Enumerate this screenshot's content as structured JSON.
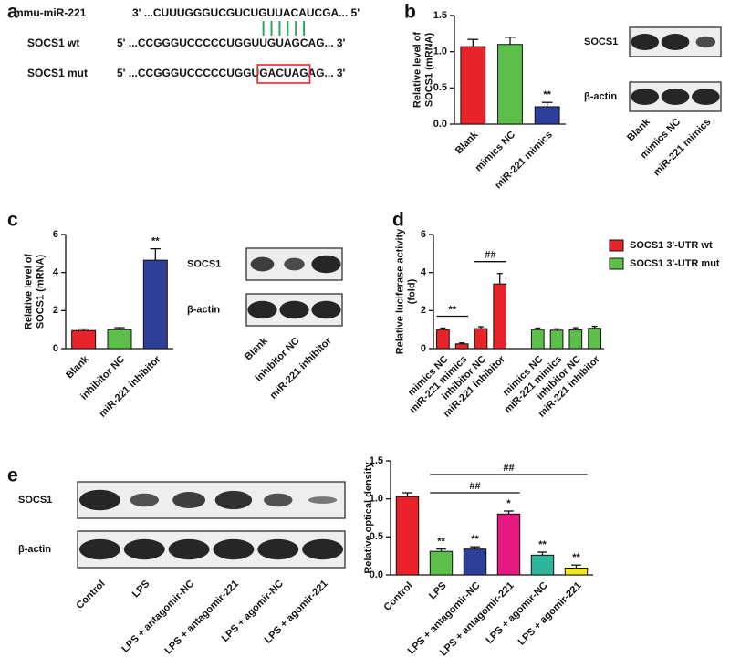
{
  "panel_a": {
    "label": "a",
    "mirna_name": "mmu-miR-221",
    "mirna_seq": "3' ...CUUUGGGUCGUCUGUUACAUCGA... 5'",
    "wt_name": "SOCS1 wt",
    "wt_seq": "5' ...CCGGGUCCCCCUGGUUGUAGCAG... 3'",
    "mut_name": "SOCS1 mut",
    "mut_seq": [
      "5' ...CCGGGUCCCCCUGGU",
      "GACUAG",
      "AG... 3'"
    ]
  },
  "blots": [
    {
      "labels": [
        "SOCS1",
        "β-actin"
      ]
    },
    {
      "labels": [
        "SOCS1",
        "β-actin"
      ]
    },
    {
      "labels": [
        "SOCS1",
        "β-actin"
      ]
    }
  ],
  "chart_data": [
    {
      "type": "bar",
      "panel_label": "b",
      "ylabel": [
        "Relative level of",
        "SOCS1 (mRNA)"
      ],
      "categories": [
        "Blank",
        "mimics NC",
        "miR-221 mimics"
      ],
      "values": [
        1.07,
        1.1,
        0.24
      ],
      "errors": [
        0.1,
        0.1,
        0.06
      ],
      "colors": [
        "#e8232a",
        "#5cbf4a",
        "#2e3f99"
      ],
      "bar_labels": [
        null,
        null,
        "**"
      ],
      "ylim": [
        0,
        1.5
      ],
      "yticks": [
        {
          "value": 0,
          "label": "0.0"
        },
        0.5,
        {
          "value": 1,
          "label": "1.0"
        },
        1.5
      ]
    },
    {
      "type": "bar",
      "panel_label": "c",
      "ylabel": [
        "Relative level of",
        "SOCS1 (mRNA)"
      ],
      "categories": [
        "Blank",
        "inhibitor NC",
        "miR-221 inhibitor"
      ],
      "values": [
        0.95,
        1.0,
        4.65
      ],
      "errors": [
        0.08,
        0.1,
        0.6
      ],
      "colors": [
        "#e8232a",
        "#5cbf4a",
        "#2e3f99"
      ],
      "bar_labels": [
        null,
        null,
        "**"
      ],
      "ylim": [
        0,
        6
      ],
      "yticks": [
        0,
        2,
        4,
        6
      ]
    },
    {
      "type": "bar",
      "panel_label": "d",
      "ylabel": [
        "Relative luciferase activity",
        "(fold)"
      ],
      "categories": [
        "mimics NC",
        "miR-221 mimics",
        "inhibitor NC",
        "miR-221 inhibitor",
        "mimics NC",
        "miR-221 mimics",
        "inhibitor NC",
        "miR-221 inhibitor"
      ],
      "series": [
        {
          "name": "SOCS1 3'-UTR wt",
          "color": "#e8232a",
          "values": [
            1.0,
            0.25,
            1.05,
            3.4,
            null,
            null,
            null,
            null
          ],
          "errors": [
            0.08,
            0.05,
            0.1,
            0.55,
            null,
            null,
            null,
            null
          ]
        },
        {
          "name": "SOCS1 3'-UTR mut",
          "color": "#5cbf4a",
          "values": [
            null,
            null,
            null,
            null,
            1.0,
            0.97,
            0.98,
            1.07
          ],
          "errors": [
            null,
            null,
            null,
            null,
            0.08,
            0.07,
            0.12,
            0.1
          ]
        }
      ],
      "brackets": [
        {
          "text": "**",
          "from": 0,
          "to": 1
        },
        {
          "text": "##",
          "from": 2,
          "to": 3
        }
      ],
      "legend": "right",
      "ylim": [
        0,
        6
      ],
      "yticks": [
        0,
        2,
        4,
        6
      ]
    },
    {
      "type": "bar",
      "panel_label": "e",
      "ylabel": [
        "Relative optical density"
      ],
      "categories": [
        "Control",
        "LPS",
        "LPS + antagomir-NC",
        "LPS + antagomir-221",
        "LPS + agomir-NC",
        "LPS + agomir-221"
      ],
      "values": [
        1.03,
        0.31,
        0.34,
        0.8,
        0.26,
        0.09
      ],
      "errors": [
        0.05,
        0.03,
        0.03,
        0.04,
        0.04,
        0.04
      ],
      "colors": [
        "#e8232a",
        "#5cbf4a",
        "#2e3f99",
        "#e5197f",
        "#2fb59a",
        "#f2e51c"
      ],
      "bar_labels": [
        null,
        "**",
        "**",
        "*",
        "**",
        "**"
      ],
      "brackets": [
        {
          "text": "##",
          "from": 1,
          "to": 3
        },
        {
          "text": "##",
          "from": 1,
          "to": 5
        }
      ],
      "ylim": [
        0,
        1.5
      ],
      "yticks": [
        {
          "value": 0,
          "label": "0.0"
        },
        0.5,
        {
          "value": 1,
          "label": "1.0"
        },
        1.5
      ]
    }
  ]
}
